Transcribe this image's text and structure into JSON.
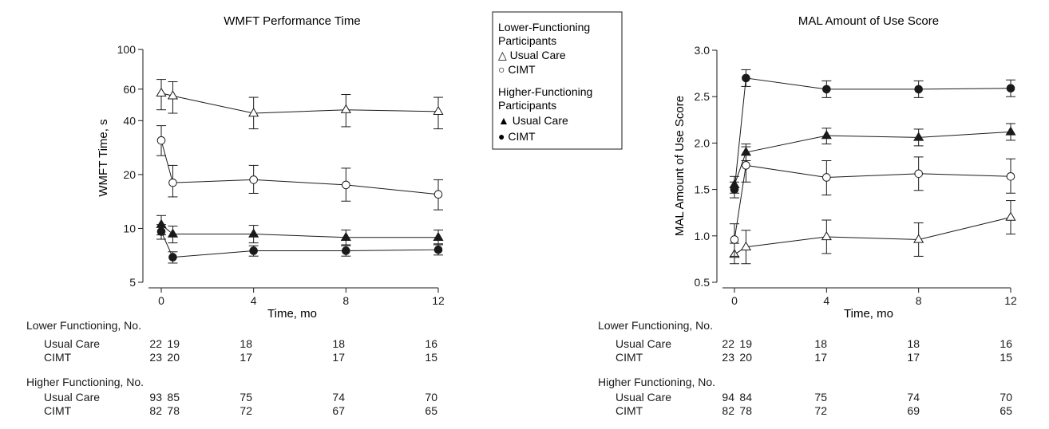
{
  "legend": {
    "group1_title": [
      "Lower-Functioning",
      "Participants"
    ],
    "group1_usual": "△ Usual Care",
    "group1_cimt": "○ CIMT",
    "group2_title": [
      "Higher-Functioning",
      "Participants"
    ],
    "group2_usual": "▲ Usual Care",
    "group2_cimt": "● CIMT"
  },
  "colors": {
    "ink": "#1a1a1a",
    "background": "#ffffff"
  },
  "chart_data": [
    {
      "type": "line",
      "title": "WMFT Performance Time",
      "xlabel": "Time, mo",
      "ylabel": "WMFT Time, s",
      "yscale": "log",
      "ylim": [
        5,
        100
      ],
      "yticks": [
        5,
        10,
        20,
        40,
        60,
        100
      ],
      "xticks": [
        0,
        4,
        8,
        12
      ],
      "grid": false,
      "series": [
        {
          "name": "Lower-Functioning Usual Care",
          "marker": "open-triangle",
          "x": [
            0,
            0.5,
            4,
            8,
            12
          ],
          "y": [
            57,
            55,
            44,
            46,
            45
          ],
          "err_low": [
            46,
            44,
            36,
            37,
            36
          ],
          "err_high": [
            68,
            66,
            54,
            56,
            54
          ]
        },
        {
          "name": "Lower-Functioning CIMT",
          "marker": "open-circle",
          "x": [
            0,
            0.5,
            4,
            8,
            12
          ],
          "y": [
            31,
            18,
            18.7,
            17.5,
            15.5
          ],
          "err_low": [
            25.5,
            15,
            15.7,
            14.2,
            12.7
          ],
          "err_high": [
            37.5,
            22.5,
            22.5,
            21.7,
            18.7
          ]
        },
        {
          "name": "Higher-Functioning Usual Care",
          "marker": "filled-triangle",
          "x": [
            0,
            0.5,
            4,
            8,
            12
          ],
          "y": [
            10.5,
            9.3,
            9.3,
            8.9,
            8.9
          ],
          "err_low": [
            9.2,
            8.3,
            8.3,
            8.1,
            8.1
          ],
          "err_high": [
            11.8,
            10.3,
            10.4,
            9.8,
            9.8
          ]
        },
        {
          "name": "Higher-Functioning CIMT",
          "marker": "filled-circle",
          "x": [
            0,
            0.5,
            4,
            8,
            12
          ],
          "y": [
            9.6,
            6.9,
            7.5,
            7.5,
            7.6
          ],
          "err_low": [
            8.7,
            6.4,
            7.0,
            7.0,
            7.1
          ],
          "err_high": [
            10.5,
            7.4,
            8.0,
            8.0,
            8.2
          ]
        }
      ]
    },
    {
      "type": "line",
      "title": "MAL Amount of Use Score",
      "xlabel": "Time, mo",
      "ylabel": "MAL Amount of Use Score",
      "yscale": "linear",
      "ylim": [
        0.5,
        3.0
      ],
      "yticks": [
        0.5,
        1.0,
        1.5,
        2.0,
        2.5,
        3.0
      ],
      "xticks": [
        0,
        4,
        8,
        12
      ],
      "grid": false,
      "series": [
        {
          "name": "Lower-Functioning Usual Care",
          "marker": "open-triangle",
          "x": [
            0,
            0.5,
            4,
            8,
            12
          ],
          "y": [
            0.8,
            0.88,
            0.99,
            0.96,
            1.2
          ],
          "err_low": [
            0.7,
            0.7,
            0.81,
            0.78,
            1.02
          ],
          "err_high": [
            0.92,
            1.06,
            1.17,
            1.14,
            1.38
          ]
        },
        {
          "name": "Lower-Functioning CIMT",
          "marker": "open-circle",
          "x": [
            0,
            0.5,
            4,
            8,
            12
          ],
          "y": [
            0.96,
            1.76,
            1.63,
            1.67,
            1.64
          ],
          "err_low": [
            0.78,
            1.58,
            1.44,
            1.49,
            1.46
          ],
          "err_high": [
            1.13,
            1.96,
            1.81,
            1.85,
            1.83
          ]
        },
        {
          "name": "Higher-Functioning Usual Care",
          "marker": "filled-triangle",
          "x": [
            0,
            0.5,
            4,
            8,
            12
          ],
          "y": [
            1.55,
            1.9,
            2.08,
            2.06,
            2.12
          ],
          "err_low": [
            1.46,
            1.81,
            1.99,
            1.97,
            2.03
          ],
          "err_high": [
            1.64,
            1.99,
            2.16,
            2.15,
            2.21
          ]
        },
        {
          "name": "Higher-Functioning CIMT",
          "marker": "filled-circle",
          "x": [
            0,
            0.5,
            4,
            8,
            12
          ],
          "y": [
            1.5,
            2.7,
            2.58,
            2.58,
            2.59
          ],
          "err_low": [
            1.41,
            2.61,
            2.49,
            2.49,
            2.5
          ],
          "err_high": [
            1.58,
            2.79,
            2.67,
            2.67,
            2.68
          ]
        }
      ]
    }
  ],
  "tables": [
    {
      "lower_heading": "Lower Functioning, No.",
      "higher_heading": "Higher Functioning, No.",
      "rows": [
        {
          "group": "lower",
          "label": "Usual Care",
          "values": [
            "22",
            "19",
            "18",
            "18",
            "16"
          ]
        },
        {
          "group": "lower",
          "label": "CIMT",
          "values": [
            "23",
            "20",
            "17",
            "17",
            "15"
          ]
        },
        {
          "group": "higher",
          "label": "Usual Care",
          "values": [
            "93",
            "85",
            "75",
            "74",
            "70"
          ]
        },
        {
          "group": "higher",
          "label": "CIMT",
          "values": [
            "82",
            "78",
            "72",
            "67",
            "65"
          ]
        }
      ]
    },
    {
      "lower_heading": "Lower Functioning, No.",
      "higher_heading": "Higher Functioning, No.",
      "rows": [
        {
          "group": "lower",
          "label": "Usual Care",
          "values": [
            "22",
            "19",
            "18",
            "18",
            "16"
          ]
        },
        {
          "group": "lower",
          "label": "CIMT",
          "values": [
            "23",
            "20",
            "17",
            "17",
            "15"
          ]
        },
        {
          "group": "higher",
          "label": "Usual Care",
          "values": [
            "94",
            "84",
            "75",
            "74",
            "70"
          ]
        },
        {
          "group": "higher",
          "label": "CIMT",
          "values": [
            "82",
            "78",
            "72",
            "69",
            "65"
          ]
        }
      ]
    }
  ]
}
